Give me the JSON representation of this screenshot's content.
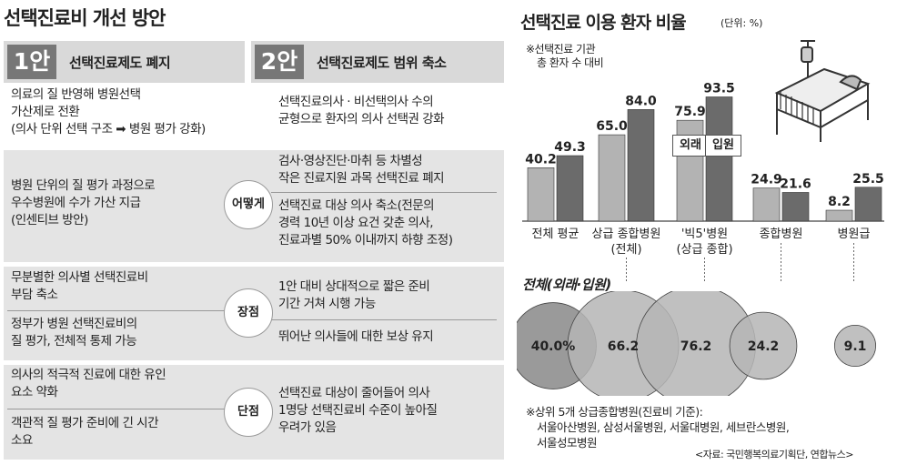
{
  "main_title": "선택진료비 개선 방안",
  "plan1": {
    "num": "1안",
    "title": "선택진료제도 폐지"
  },
  "plan2": {
    "num": "2안",
    "title": "선택진료제도 범위 축소"
  },
  "row_labels": {
    "how": "어떻게",
    "pros": "장점",
    "cons": "단점"
  },
  "plan1_intro": [
    "의료의 질 반영해 병원선택",
    "가산제로 전환",
    "(의사 단위 선택 구조 ➡ 병원 평가 강화)"
  ],
  "plan2_intro": [
    "선택진료의사 · 비선택의사 수의",
    "균형으로 환자의 의사 선택권 강화"
  ],
  "plan1_how": [
    "병원 단위의 질 평가 과정으로",
    "우수병원에 수가 가산 지급",
    "(인센티브 방안)"
  ],
  "plan2_how_a": [
    "검사·영상진단·마취 등 차별성",
    "작은 진료지원 과목 선택진료 폐지"
  ],
  "plan2_how_b": [
    "선택진료 대상 의사  축소(전문의",
    "경력 10년 이상 요건 갖춘 의사,",
    "진료과별 50% 이내까지 하향 조정)"
  ],
  "plan1_pros_a": [
    "무분별한 의사별 선택진료비",
    "부담 축소"
  ],
  "plan1_pros_b": [
    "정부가 병원 선택진료비의",
    "질 평가, 전체적 통제 가능"
  ],
  "plan2_pros_a": [
    "1안 대비 상대적으로 짧은 준비",
    "기간 거쳐 시행 가능"
  ],
  "plan2_pros_b": [
    "뛰어난 의사들에 대한 보상 유지"
  ],
  "plan1_cons_a": [
    "의사의 적극적 진료에 대한 유인",
    "요소 약화"
  ],
  "plan1_cons_b": [
    "객관적 질 평가 준비에 긴 시간",
    "소요"
  ],
  "plan2_cons": [
    "선택진료 대상이 줄어들어 의사",
    "1명당 선택진료비 수준이 높아질",
    "우려가 있음"
  ],
  "chart_title": "선택진료 이용 환자 비율",
  "unit": "(단위: %)",
  "note_top": [
    "※선택진료 기관",
    "총 환자 수 대비"
  ],
  "legend": {
    "outpatient": "외래",
    "inpatient": "입원"
  },
  "bubble_title": "전체(외래·입원)",
  "footnote": [
    "※상위 5개 상급종합병원(진료비 기준):",
    "서울아산병원, 삼성서울병원, 서울대병원, 세브란스병원,",
    "서울성모병원"
  ],
  "source": "<자료: 국민행복의료기획단, 연합뉴스>",
  "colors": {
    "outpatient": "#b3b3b3",
    "inpatient": "#6b6b6b",
    "bubble": "#b5b5b5",
    "bubble_first": "#888888"
  },
  "chart_data": {
    "type": "bar",
    "categories": [
      "전체 평균",
      "상급 종합병원\n(전체)",
      "'빅5'병원\n(상급 종합)",
      "종합병원",
      "병원급"
    ],
    "series": [
      {
        "name": "외래",
        "values": [
          40.2,
          65.0,
          75.9,
          24.9,
          8.2
        ]
      },
      {
        "name": "입원",
        "values": [
          49.3,
          84.0,
          93.5,
          21.6,
          25.5
        ]
      }
    ],
    "value_labels": [
      [
        "40.2",
        "65.0",
        "75.9",
        "24.9",
        "8.2"
      ],
      [
        "49.3",
        "84.0",
        "93.5",
        "21.6",
        "25.5"
      ]
    ],
    "overall": {
      "values": [
        40.0,
        66.2,
        76.2,
        24.2,
        9.1
      ],
      "labels": [
        "40.0%",
        "66.2",
        "76.2",
        "24.2",
        "9.1"
      ]
    },
    "ylim": [
      0,
      100
    ]
  }
}
